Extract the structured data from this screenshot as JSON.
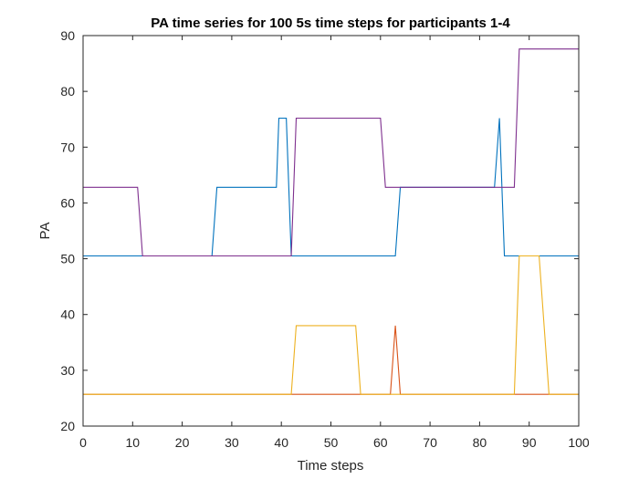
{
  "chart_data": {
    "type": "line",
    "title": "PA time series for 100 5s time steps for participants 1-4",
    "xlabel": "Time steps",
    "ylabel": "PA",
    "xlim": [
      0,
      100
    ],
    "ylim": [
      20,
      90
    ],
    "xticks": [
      0,
      10,
      20,
      30,
      40,
      50,
      60,
      70,
      80,
      90,
      100
    ],
    "yticks": [
      20,
      30,
      40,
      50,
      60,
      70,
      80,
      90
    ],
    "grid": false,
    "legend": "none",
    "series": [
      {
        "color": "#0072BD",
        "x": [
          0,
          26,
          27,
          39,
          39.5,
          40,
          41,
          42,
          43,
          62,
          63,
          64,
          83,
          84,
          85,
          100
        ],
        "y": [
          50.5,
          50.5,
          62.8,
          62.8,
          75.2,
          75.2,
          75.2,
          50.5,
          50.5,
          50.5,
          50.5,
          62.8,
          62.8,
          75.2,
          50.5,
          50.5
        ]
      },
      {
        "color": "#D95319",
        "x": [
          0,
          62,
          63,
          64,
          100
        ],
        "y": [
          25.7,
          25.7,
          38,
          25.7,
          25.7
        ]
      },
      {
        "color": "#EDB120",
        "x": [
          0,
          42,
          43,
          55,
          56,
          87,
          88,
          92,
          94,
          100
        ],
        "y": [
          25.7,
          25.7,
          38,
          38,
          25.7,
          25.7,
          50.5,
          50.5,
          25.7,
          25.7
        ]
      },
      {
        "color": "#7E2F8E",
        "x": [
          0,
          11,
          12,
          42,
          43,
          60,
          61,
          87,
          88,
          100
        ],
        "y": [
          62.8,
          62.8,
          50.5,
          50.5,
          75.2,
          75.2,
          62.8,
          62.8,
          87.6,
          87.6
        ]
      }
    ]
  }
}
